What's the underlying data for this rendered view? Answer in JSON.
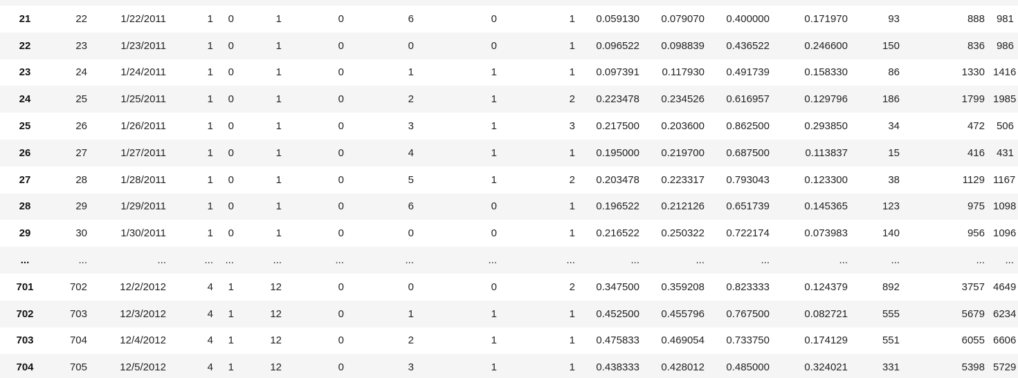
{
  "table": {
    "rows": [
      {
        "index": "21",
        "cells": [
          "22",
          "1/22/2011",
          "1",
          "0",
          "1",
          "0",
          "6",
          "0",
          "1",
          "0.059130",
          "0.079070",
          "0.400000",
          "0.171970",
          "93",
          "888",
          "981"
        ]
      },
      {
        "index": "22",
        "cells": [
          "23",
          "1/23/2011",
          "1",
          "0",
          "1",
          "0",
          "0",
          "0",
          "1",
          "0.096522",
          "0.098839",
          "0.436522",
          "0.246600",
          "150",
          "836",
          "986"
        ]
      },
      {
        "index": "23",
        "cells": [
          "24",
          "1/24/2011",
          "1",
          "0",
          "1",
          "0",
          "1",
          "1",
          "1",
          "0.097391",
          "0.117930",
          "0.491739",
          "0.158330",
          "86",
          "1330",
          "1416"
        ]
      },
      {
        "index": "24",
        "cells": [
          "25",
          "1/25/2011",
          "1",
          "0",
          "1",
          "0",
          "2",
          "1",
          "2",
          "0.223478",
          "0.234526",
          "0.616957",
          "0.129796",
          "186",
          "1799",
          "1985"
        ]
      },
      {
        "index": "25",
        "cells": [
          "26",
          "1/26/2011",
          "1",
          "0",
          "1",
          "0",
          "3",
          "1",
          "3",
          "0.217500",
          "0.203600",
          "0.862500",
          "0.293850",
          "34",
          "472",
          "506"
        ]
      },
      {
        "index": "26",
        "cells": [
          "27",
          "1/27/2011",
          "1",
          "0",
          "1",
          "0",
          "4",
          "1",
          "1",
          "0.195000",
          "0.219700",
          "0.687500",
          "0.113837",
          "15",
          "416",
          "431"
        ]
      },
      {
        "index": "27",
        "cells": [
          "28",
          "1/28/2011",
          "1",
          "0",
          "1",
          "0",
          "5",
          "1",
          "2",
          "0.203478",
          "0.223317",
          "0.793043",
          "0.123300",
          "38",
          "1129",
          "1167"
        ]
      },
      {
        "index": "28",
        "cells": [
          "29",
          "1/29/2011",
          "1",
          "0",
          "1",
          "0",
          "6",
          "0",
          "1",
          "0.196522",
          "0.212126",
          "0.651739",
          "0.145365",
          "123",
          "975",
          "1098"
        ]
      },
      {
        "index": "29",
        "cells": [
          "30",
          "1/30/2011",
          "1",
          "0",
          "1",
          "0",
          "0",
          "0",
          "1",
          "0.216522",
          "0.250322",
          "0.722174",
          "0.073983",
          "140",
          "956",
          "1096"
        ]
      },
      {
        "index": "...",
        "cells": [
          "...",
          "...",
          "...",
          "...",
          "...",
          "...",
          "...",
          "...",
          "...",
          "...",
          "...",
          "...",
          "...",
          "...",
          "...",
          "..."
        ]
      },
      {
        "index": "701",
        "cells": [
          "702",
          "12/2/2012",
          "4",
          "1",
          "12",
          "0",
          "0",
          "0",
          "2",
          "0.347500",
          "0.359208",
          "0.823333",
          "0.124379",
          "892",
          "3757",
          "4649"
        ]
      },
      {
        "index": "702",
        "cells": [
          "703",
          "12/3/2012",
          "4",
          "1",
          "12",
          "0",
          "1",
          "1",
          "1",
          "0.452500",
          "0.455796",
          "0.767500",
          "0.082721",
          "555",
          "5679",
          "6234"
        ]
      },
      {
        "index": "703",
        "cells": [
          "704",
          "12/4/2012",
          "4",
          "1",
          "12",
          "0",
          "2",
          "1",
          "1",
          "0.475833",
          "0.469054",
          "0.733750",
          "0.174129",
          "551",
          "6055",
          "6606"
        ]
      },
      {
        "index": "704",
        "cells": [
          "705",
          "12/5/2012",
          "4",
          "1",
          "12",
          "0",
          "3",
          "1",
          "1",
          "0.438333",
          "0.428012",
          "0.485000",
          "0.324021",
          "331",
          "5398",
          "5729"
        ]
      }
    ]
  }
}
